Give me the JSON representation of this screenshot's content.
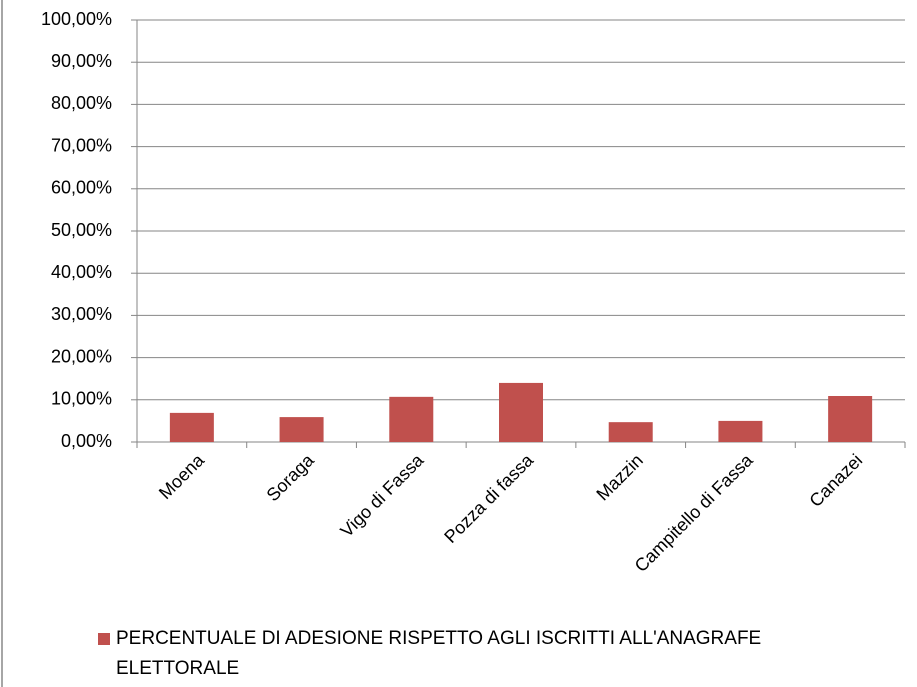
{
  "chart_data": {
    "type": "bar",
    "categories": [
      "Moena",
      "Soraga",
      "Vigo di Fassa",
      "Pozza di fassa",
      "Mazzin",
      "Campitello di Fassa",
      "Canazei"
    ],
    "series": [
      {
        "name": "PERCENTUALE DI ADESIONE RISPETTO AGLI ISCRITTI ALL'ANAGRAFE ELETTORALE",
        "color": "#c0504d",
        "values": [
          6.9,
          5.9,
          10.7,
          14.0,
          4.7,
          5.0,
          10.9
        ]
      }
    ],
    "ylim": [
      0,
      100
    ],
    "yticks": [
      {
        "value": 0,
        "label": "0,00%"
      },
      {
        "value": 10,
        "label": "10,00%"
      },
      {
        "value": 20,
        "label": "20,00%"
      },
      {
        "value": 30,
        "label": "30,00%"
      },
      {
        "value": 40,
        "label": "40,00%"
      },
      {
        "value": 50,
        "label": "50,00%"
      },
      {
        "value": 60,
        "label": "60,00%"
      },
      {
        "value": 70,
        "label": "70,00%"
      },
      {
        "value": 80,
        "label": "80,00%"
      },
      {
        "value": 90,
        "label": "90,00%"
      },
      {
        "value": 100,
        "label": "100,00%"
      }
    ],
    "grid": true,
    "legend": "bottom"
  }
}
